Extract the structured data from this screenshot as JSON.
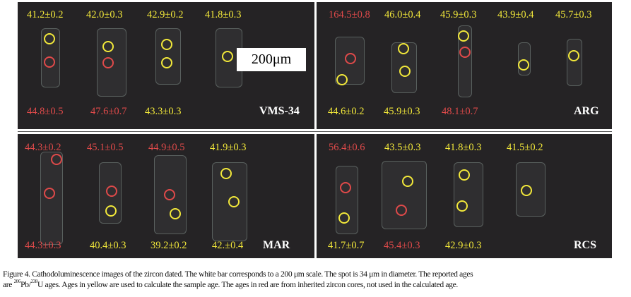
{
  "colors": {
    "used_age": "#f2e83a",
    "inherited_age": "#e04a4a",
    "background": "#252325"
  },
  "panels": [
    {
      "sample": "VMS-34",
      "scale_label": "200μm",
      "labels": [
        {
          "text": "41.2±0.2",
          "color": "yellow"
        },
        {
          "text": "42.0±0.3",
          "color": "yellow"
        },
        {
          "text": "42.9±0.2",
          "color": "yellow"
        },
        {
          "text": "41.8±0.3",
          "color": "yellow"
        },
        {
          "text": "44.8±0.5",
          "color": "red"
        },
        {
          "text": "47.6±0.7",
          "color": "red"
        },
        {
          "text": "43.3±0.3",
          "color": "yellow"
        }
      ]
    },
    {
      "sample": "ARG",
      "labels": [
        {
          "text": "164.5±0.8",
          "color": "red"
        },
        {
          "text": "46.0±0.4",
          "color": "yellow"
        },
        {
          "text": "45.9±0.3",
          "color": "yellow"
        },
        {
          "text": "43.9±0.4",
          "color": "yellow"
        },
        {
          "text": "45.7±0.3",
          "color": "yellow"
        },
        {
          "text": "44.6±0.2",
          "color": "yellow"
        },
        {
          "text": "45.9±0.3",
          "color": "yellow"
        },
        {
          "text": "48.1±0.7",
          "color": "red"
        }
      ]
    },
    {
      "sample": "MAR",
      "labels": [
        {
          "text": "44.3±0.2",
          "color": "red"
        },
        {
          "text": "45.1±0.5",
          "color": "red"
        },
        {
          "text": "44.9±0.5",
          "color": "red"
        },
        {
          "text": "41.9±0.3",
          "color": "yellow"
        },
        {
          "text": "44.3±0.3",
          "color": "red"
        },
        {
          "text": "40.4±0.3",
          "color": "yellow"
        },
        {
          "text": "39.2±0.2",
          "color": "yellow"
        },
        {
          "text": "42.±0.4",
          "color": "yellow"
        }
      ]
    },
    {
      "sample": "RCS",
      "labels": [
        {
          "text": "56.4±0.6",
          "color": "red"
        },
        {
          "text": "43.5±0.3",
          "color": "yellow"
        },
        {
          "text": "41.8±0.3",
          "color": "yellow"
        },
        {
          "text": "41.5±0.2",
          "color": "yellow"
        },
        {
          "text": "41.7±0.7",
          "color": "yellow"
        },
        {
          "text": "45.4±0.3",
          "color": "red"
        },
        {
          "text": "42.9±0.3",
          "color": "yellow"
        }
      ]
    }
  ],
  "caption": {
    "line1": "Figure 4. Cathodoluminescence images of the zircon dated. The white bar corresponds to a 200 μm scale. The spot is 34 μm in diameter. The reported ages",
    "line2_pre": "are ",
    "sup1": "206",
    "mid": "Pb/",
    "sup2": "238",
    "line2_post": "U ages. Ages in yellow are used to calculate the sample age. The ages in red are from inherited zircon cores, not used in the calculated age."
  }
}
